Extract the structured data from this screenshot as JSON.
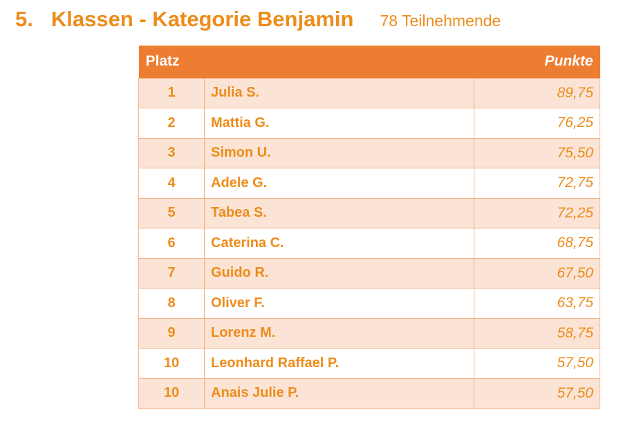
{
  "header": {
    "number": "5.",
    "title": "Klassen - Kategorie Benjamin",
    "participants": "78 Teilnehmende"
  },
  "table": {
    "col_rank": "Platz",
    "col_name": "",
    "col_points": "Punkte",
    "rows": [
      {
        "rank": "1",
        "name": "Julia S.",
        "points": "89,75"
      },
      {
        "rank": "2",
        "name": "Mattia G.",
        "points": "76,25"
      },
      {
        "rank": "3",
        "name": "Simon U.",
        "points": "75,50"
      },
      {
        "rank": "4",
        "name": "Adele G.",
        "points": "72,75"
      },
      {
        "rank": "5",
        "name": "Tabea S.",
        "points": "72,25"
      },
      {
        "rank": "6",
        "name": "Caterina C.",
        "points": "68,75"
      },
      {
        "rank": "7",
        "name": "Guido R.",
        "points": "67,50"
      },
      {
        "rank": "8",
        "name": "Oliver F.",
        "points": "63,75"
      },
      {
        "rank": "9",
        "name": "Lorenz M.",
        "points": "58,75"
      },
      {
        "rank": "10",
        "name": "Leonhard Raffael P.",
        "points": "57,50"
      },
      {
        "rank": "10",
        "name": "Anais Julie P.",
        "points": "57,50"
      }
    ]
  },
  "colors": {
    "accent_text": "#ed8c1a",
    "header_fill": "#ed7d31",
    "band_fill": "#fbe4d5",
    "border": "#f4b183"
  }
}
